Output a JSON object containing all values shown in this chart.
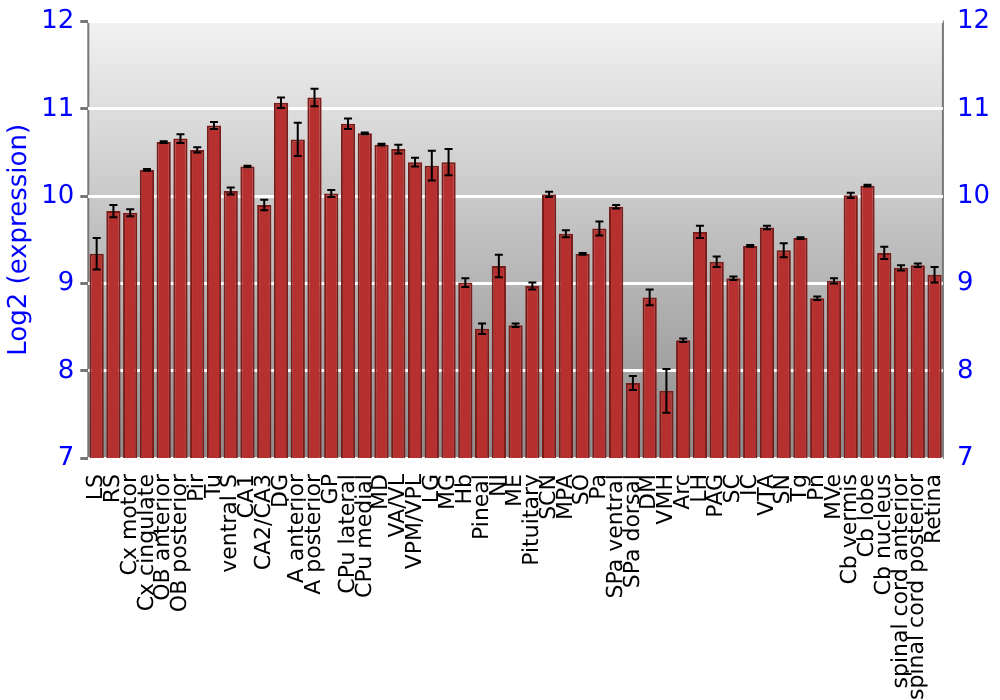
{
  "chart_data": {
    "type": "bar",
    "ylabel": "Log2 (expression)",
    "categories": [
      "LS",
      "RS",
      "Cx motor",
      "Cx cingulate",
      "OB anterior",
      "OB posterior",
      "Pir",
      "Tu",
      "ventral S",
      "CA1",
      "CA2/CA3",
      "DG",
      "A anterior",
      "A posterior",
      "GP",
      "CPu lateral",
      "CPu medial",
      "MD",
      "VA/VL",
      "VPM/VPL",
      "LG",
      "MG",
      "Hb",
      "Pineal",
      "NI",
      "ME",
      "Pituitary",
      "SCN",
      "MPA",
      "SO",
      "Pa",
      "SPa ventral",
      "SPa dorsal",
      "DM",
      "VMH",
      "Arc",
      "LH",
      "PAG",
      "SC",
      "IC",
      "VTA",
      "SN",
      "Tg",
      "Pn",
      "MVe",
      "Cb vermis",
      "Cb lobe",
      "Cb nucleus",
      "spinal cord anterior",
      "spinal cord posterior",
      "Retina"
    ],
    "values": [
      9.34,
      9.83,
      9.81,
      10.3,
      10.62,
      10.66,
      10.53,
      10.81,
      10.06,
      10.34,
      9.9,
      11.07,
      10.65,
      11.13,
      10.03,
      10.83,
      10.72,
      10.59,
      10.54,
      10.39,
      10.35,
      10.39,
      9.01,
      8.48,
      9.2,
      8.52,
      8.97,
      10.02,
      9.57,
      9.34,
      9.63,
      9.88,
      7.86,
      8.84,
      7.77,
      8.35,
      9.59,
      9.25,
      9.06,
      9.43,
      9.64,
      9.38,
      9.52,
      8.83,
      9.03,
      10.01,
      10.12,
      9.35,
      9.18,
      9.21,
      9.1
    ],
    "errors": [
      0.18,
      0.07,
      0.04,
      0.01,
      0.01,
      0.05,
      0.03,
      0.04,
      0.04,
      0.01,
      0.06,
      0.06,
      0.19,
      0.1,
      0.04,
      0.06,
      0.01,
      0.01,
      0.05,
      0.05,
      0.17,
      0.15,
      0.05,
      0.06,
      0.13,
      0.02,
      0.04,
      0.03,
      0.04,
      0.01,
      0.08,
      0.02,
      0.08,
      0.09,
      0.25,
      0.02,
      0.07,
      0.06,
      0.02,
      0.01,
      0.02,
      0.08,
      0.01,
      0.02,
      0.03,
      0.03,
      0.01,
      0.07,
      0.03,
      0.02,
      0.09
    ],
    "color": "#b5302e",
    "ylim": [
      7,
      12
    ],
    "yticks": [
      7,
      8,
      9,
      10,
      11,
      12
    ],
    "y2lim": [
      7,
      12
    ],
    "y2ticks": [
      7,
      8,
      9,
      10,
      11,
      12
    ],
    "grid": "y"
  }
}
